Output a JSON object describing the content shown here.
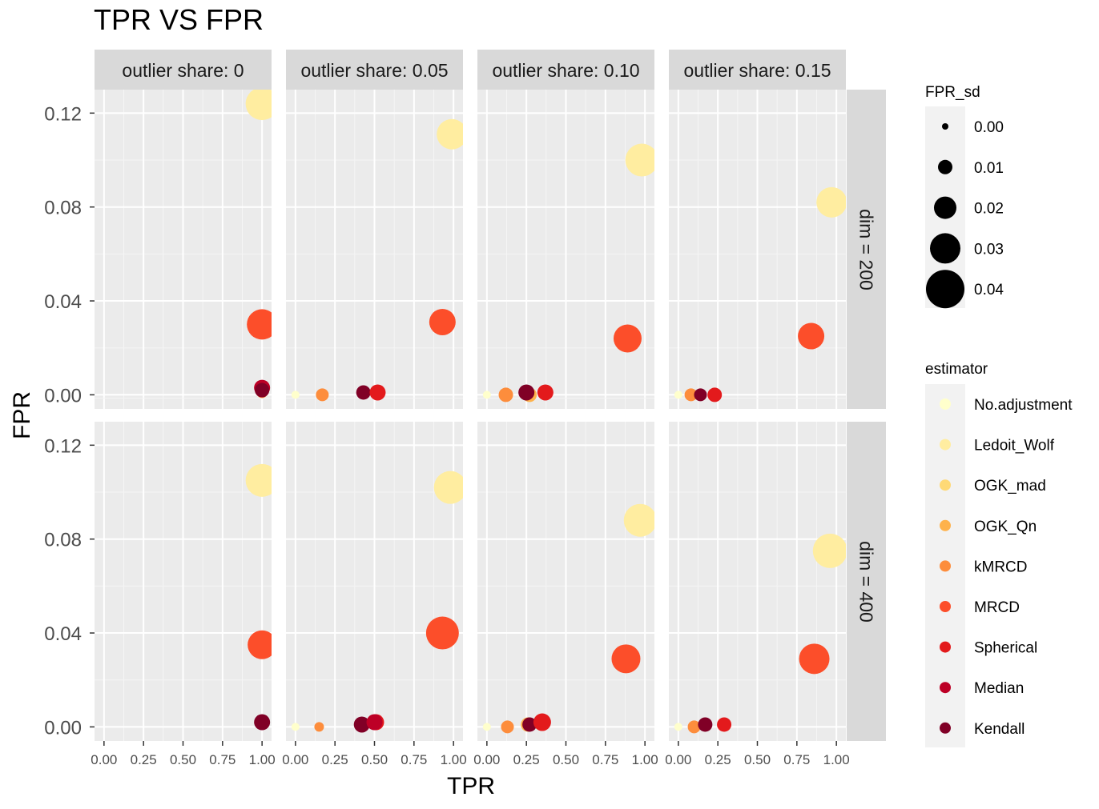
{
  "chart_data": {
    "type": "scatter",
    "title": "TPR VS FPR",
    "xlabel": "TPR",
    "ylabel": "FPR",
    "xlim": [
      -0.06,
      1.06
    ],
    "ylim": [
      -0.006,
      0.13
    ],
    "x_ticks": [
      "0.00",
      "0.25",
      "0.50",
      "0.75",
      "1.00"
    ],
    "y_ticks": [
      "0.00",
      "0.04",
      "0.08",
      "0.12"
    ],
    "x_tick_values": [
      0,
      0.25,
      0.5,
      0.75,
      1.0
    ],
    "y_tick_values": [
      0,
      0.04,
      0.08,
      0.12
    ],
    "grid": true,
    "legend_position": "right",
    "col_facets": [
      "outlier share: 0",
      "outlier share: 0.05",
      "outlier share: 0.10",
      "outlier share: 0.15"
    ],
    "row_facets": [
      "dim = 200",
      "dim = 400"
    ],
    "size_legend": {
      "title": "FPR_sd",
      "entries": [
        {
          "label": "0.00",
          "value": 0.0
        },
        {
          "label": "0.01",
          "value": 0.01
        },
        {
          "label": "0.02",
          "value": 0.02
        },
        {
          "label": "0.03",
          "value": 0.03
        },
        {
          "label": "0.04",
          "value": 0.04
        }
      ]
    },
    "color_legend": {
      "title": "estimator",
      "entries": [
        {
          "name": "No.adjustment",
          "color": "#FFFFCC"
        },
        {
          "name": "Ledoit_Wolf",
          "color": "#FFEDA0"
        },
        {
          "name": "OGK_mad",
          "color": "#FED976"
        },
        {
          "name": "OGK_Qn",
          "color": "#FEB24C"
        },
        {
          "name": "kMRCD",
          "color": "#FD8D3C"
        },
        {
          "name": "MRCD",
          "color": "#FC4E2A"
        },
        {
          "name": "Spherical",
          "color": "#E31A1C"
        },
        {
          "name": "Median",
          "color": "#BD0026"
        },
        {
          "name": "Kendall",
          "color": "#800026"
        }
      ]
    },
    "panels": [
      {
        "row": 0,
        "col": 0,
        "points": [
          {
            "estimator": "Ledoit_Wolf",
            "tpr": 1.0,
            "fpr": 0.124,
            "sd": 0.033
          },
          {
            "estimator": "MRCD",
            "tpr": 1.0,
            "fpr": 0.03,
            "sd": 0.03
          },
          {
            "estimator": "kMRCD",
            "tpr": 1.0,
            "fpr": 0.001,
            "sd": 0.006
          },
          {
            "estimator": "Spherical",
            "tpr": 1.0,
            "fpr": 0.002,
            "sd": 0.01
          },
          {
            "estimator": "Median",
            "tpr": 1.0,
            "fpr": 0.003,
            "sd": 0.012
          },
          {
            "estimator": "Kendall",
            "tpr": 1.0,
            "fpr": 0.002,
            "sd": 0.01
          }
        ]
      },
      {
        "row": 0,
        "col": 1,
        "points": [
          {
            "estimator": "Ledoit_Wolf",
            "tpr": 0.99,
            "fpr": 0.111,
            "sd": 0.03
          },
          {
            "estimator": "MRCD",
            "tpr": 0.93,
            "fpr": 0.031,
            "sd": 0.025
          },
          {
            "estimator": "No.adjustment",
            "tpr": 0.0,
            "fpr": 0.0,
            "sd": 0.002
          },
          {
            "estimator": "kMRCD",
            "tpr": 0.17,
            "fpr": 0.0,
            "sd": 0.008
          },
          {
            "estimator": "Kendall",
            "tpr": 0.43,
            "fpr": 0.001,
            "sd": 0.01
          },
          {
            "estimator": "Spherical",
            "tpr": 0.52,
            "fpr": 0.001,
            "sd": 0.012
          }
        ]
      },
      {
        "row": 0,
        "col": 2,
        "points": [
          {
            "estimator": "Ledoit_Wolf",
            "tpr": 0.98,
            "fpr": 0.1,
            "sd": 0.033
          },
          {
            "estimator": "MRCD",
            "tpr": 0.89,
            "fpr": 0.024,
            "sd": 0.027
          },
          {
            "estimator": "No.adjustment",
            "tpr": 0.0,
            "fpr": 0.0,
            "sd": 0.002
          },
          {
            "estimator": "kMRCD",
            "tpr": 0.12,
            "fpr": 0.0,
            "sd": 0.01
          },
          {
            "estimator": "OGK_Qn",
            "tpr": 0.27,
            "fpr": 0.0,
            "sd": 0.01
          },
          {
            "estimator": "Kendall",
            "tpr": 0.25,
            "fpr": 0.001,
            "sd": 0.012
          },
          {
            "estimator": "Spherical",
            "tpr": 0.37,
            "fpr": 0.001,
            "sd": 0.012
          }
        ]
      },
      {
        "row": 0,
        "col": 3,
        "points": [
          {
            "estimator": "Ledoit_Wolf",
            "tpr": 0.97,
            "fpr": 0.082,
            "sd": 0.03
          },
          {
            "estimator": "MRCD",
            "tpr": 0.84,
            "fpr": 0.025,
            "sd": 0.025
          },
          {
            "estimator": "No.adjustment",
            "tpr": 0.0,
            "fpr": 0.0,
            "sd": 0.002
          },
          {
            "estimator": "kMRCD",
            "tpr": 0.08,
            "fpr": 0.0,
            "sd": 0.008
          },
          {
            "estimator": "Kendall",
            "tpr": 0.14,
            "fpr": 0.0,
            "sd": 0.008
          },
          {
            "estimator": "Spherical",
            "tpr": 0.23,
            "fpr": 0.0,
            "sd": 0.01
          }
        ]
      },
      {
        "row": 1,
        "col": 0,
        "points": [
          {
            "estimator": "Ledoit_Wolf",
            "tpr": 1.0,
            "fpr": 0.105,
            "sd": 0.033
          },
          {
            "estimator": "MRCD",
            "tpr": 1.0,
            "fpr": 0.035,
            "sd": 0.028
          },
          {
            "estimator": "Kendall",
            "tpr": 1.0,
            "fpr": 0.002,
            "sd": 0.012
          }
        ]
      },
      {
        "row": 1,
        "col": 1,
        "points": [
          {
            "estimator": "Ledoit_Wolf",
            "tpr": 0.98,
            "fpr": 0.102,
            "sd": 0.033
          },
          {
            "estimator": "MRCD",
            "tpr": 0.93,
            "fpr": 0.04,
            "sd": 0.033
          },
          {
            "estimator": "No.adjustment",
            "tpr": 0.0,
            "fpr": 0.0,
            "sd": 0.002
          },
          {
            "estimator": "kMRCD",
            "tpr": 0.15,
            "fpr": 0.0,
            "sd": 0.004
          },
          {
            "estimator": "Kendall",
            "tpr": 0.42,
            "fpr": 0.001,
            "sd": 0.012
          },
          {
            "estimator": "Spherical",
            "tpr": 0.51,
            "fpr": 0.002,
            "sd": 0.012
          },
          {
            "estimator": "Median",
            "tpr": 0.5,
            "fpr": 0.002,
            "sd": 0.012
          }
        ]
      },
      {
        "row": 1,
        "col": 2,
        "points": [
          {
            "estimator": "Ledoit_Wolf",
            "tpr": 0.97,
            "fpr": 0.088,
            "sd": 0.033
          },
          {
            "estimator": "MRCD",
            "tpr": 0.88,
            "fpr": 0.029,
            "sd": 0.028
          },
          {
            "estimator": "No.adjustment",
            "tpr": 0.0,
            "fpr": 0.0,
            "sd": 0.002
          },
          {
            "estimator": "kMRCD",
            "tpr": 0.13,
            "fpr": 0.0,
            "sd": 0.008
          },
          {
            "estimator": "OGK_Qn",
            "tpr": 0.26,
            "fpr": 0.001,
            "sd": 0.01
          },
          {
            "estimator": "Kendall",
            "tpr": 0.27,
            "fpr": 0.001,
            "sd": 0.01
          },
          {
            "estimator": "Spherical",
            "tpr": 0.35,
            "fpr": 0.002,
            "sd": 0.014
          }
        ]
      },
      {
        "row": 1,
        "col": 3,
        "points": [
          {
            "estimator": "Ledoit_Wolf",
            "tpr": 0.96,
            "fpr": 0.075,
            "sd": 0.035
          },
          {
            "estimator": "MRCD",
            "tpr": 0.86,
            "fpr": 0.029,
            "sd": 0.03
          },
          {
            "estimator": "No.adjustment",
            "tpr": 0.0,
            "fpr": 0.0,
            "sd": 0.002
          },
          {
            "estimator": "kMRCD",
            "tpr": 0.1,
            "fpr": 0.0,
            "sd": 0.008
          },
          {
            "estimator": "Kendall",
            "tpr": 0.17,
            "fpr": 0.001,
            "sd": 0.01
          },
          {
            "estimator": "Spherical",
            "tpr": 0.29,
            "fpr": 0.001,
            "sd": 0.01
          }
        ]
      }
    ]
  }
}
